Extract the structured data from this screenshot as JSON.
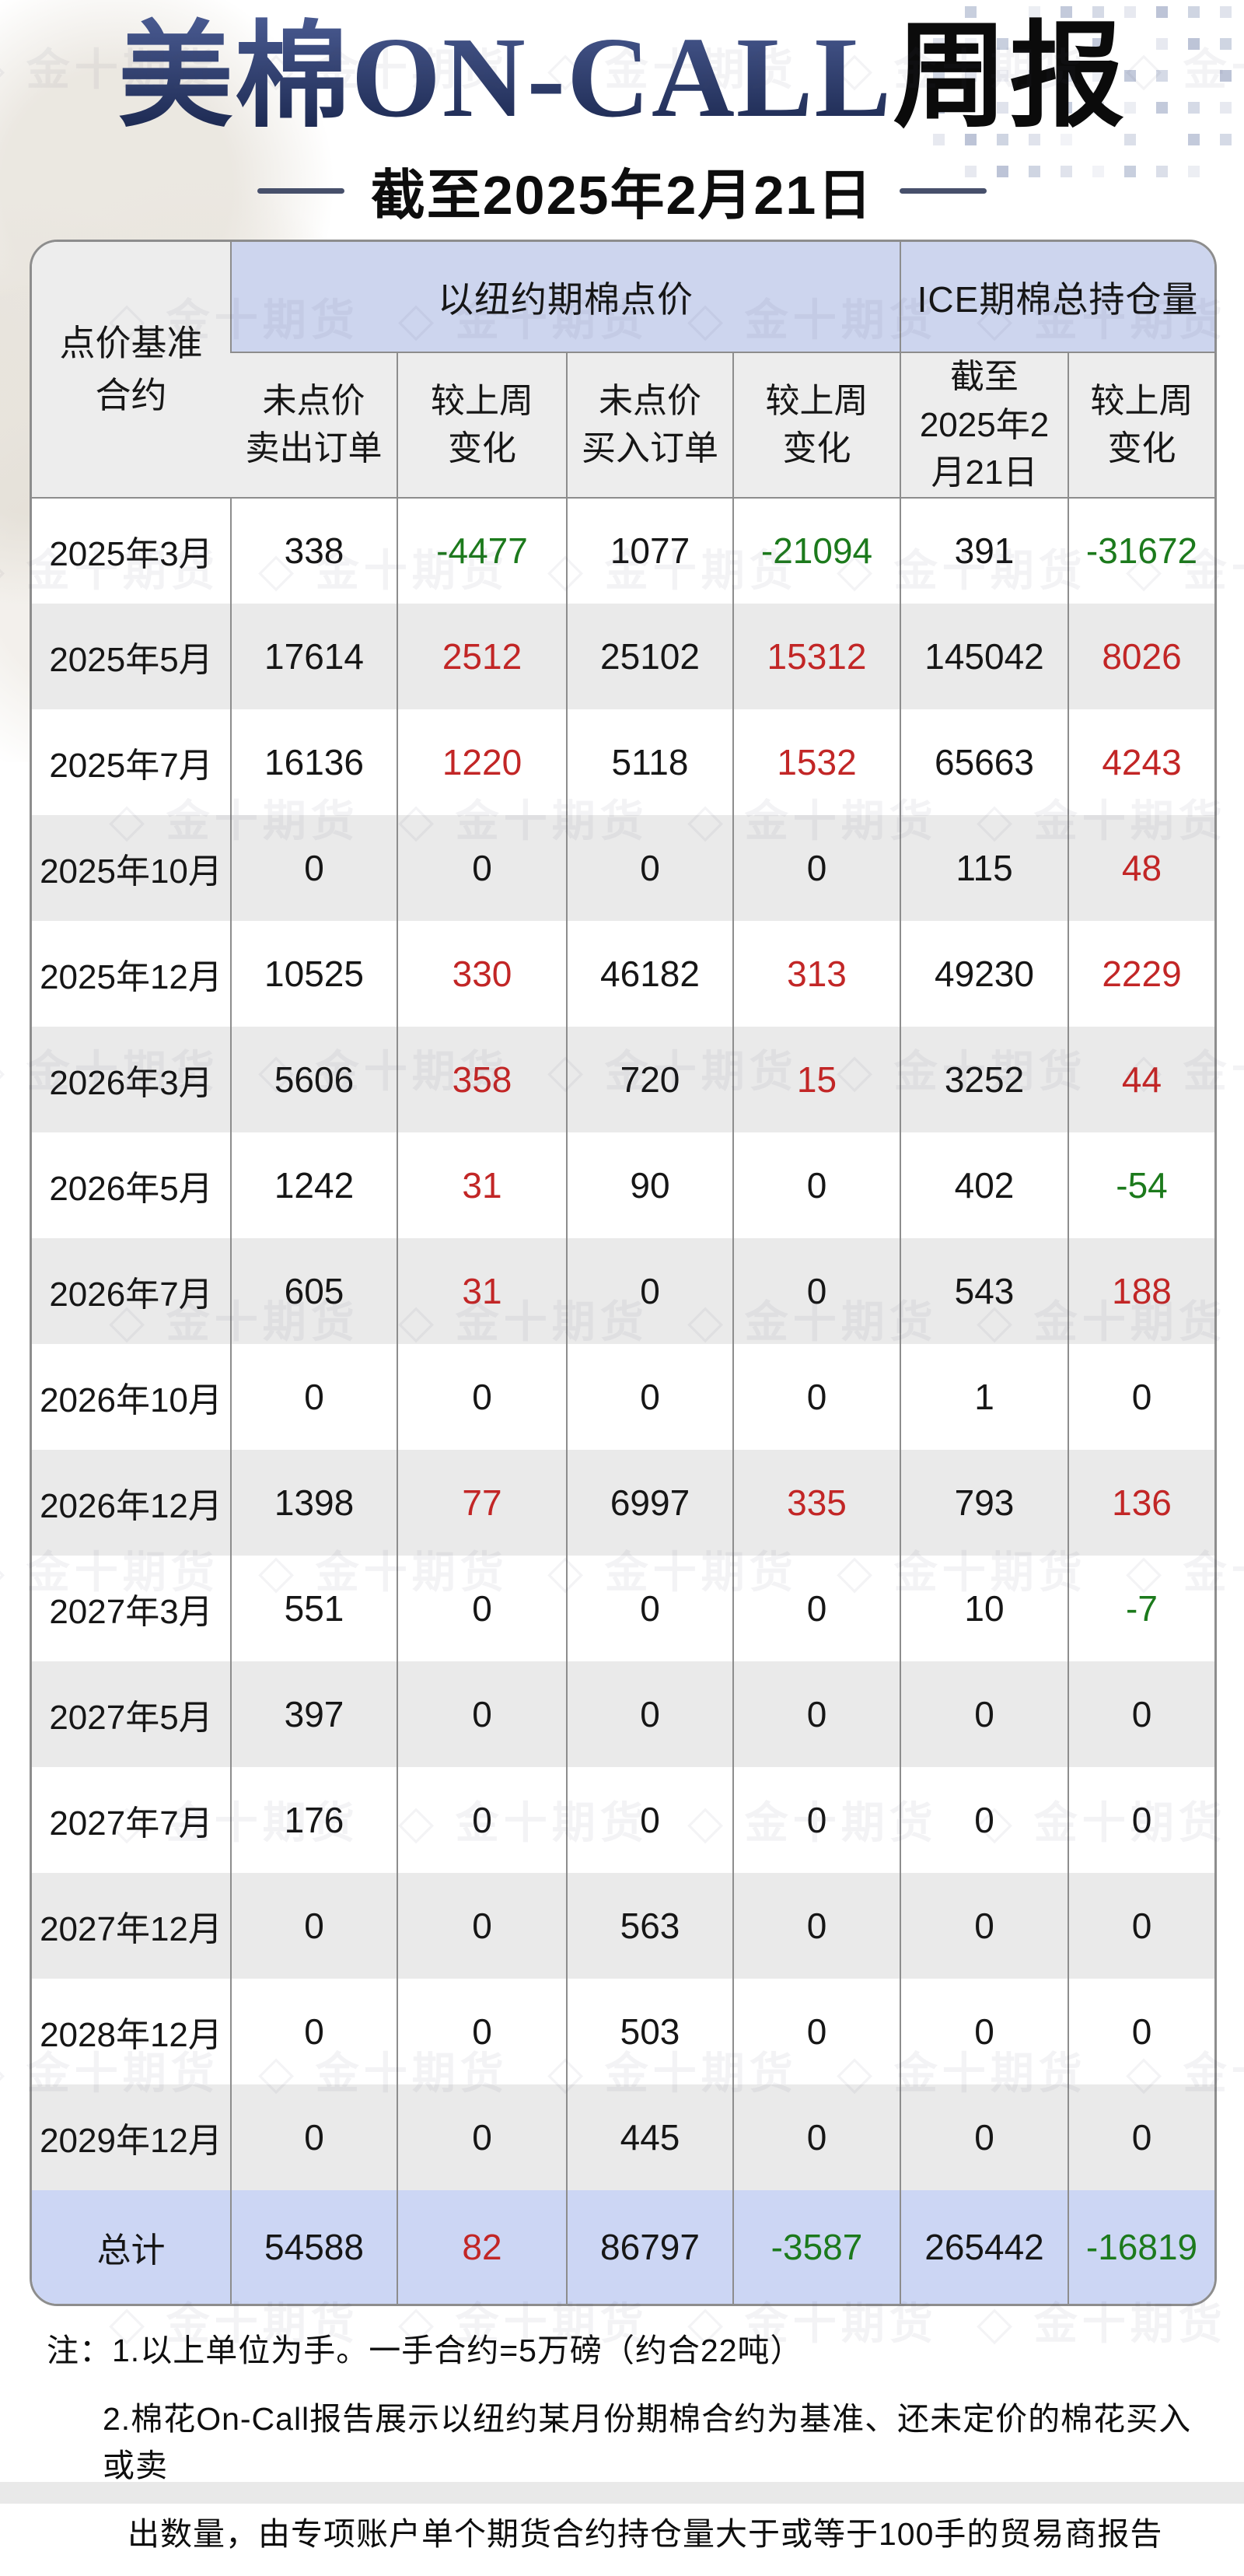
{
  "header": {
    "title_main": "美棉ON-CALL",
    "title_suffix": "周报",
    "subtitle": "截至2025年2月21日"
  },
  "watermark": {
    "text": "金十期货"
  },
  "table": {
    "corner_header_lines": [
      "点价基准",
      "合约"
    ],
    "group_headers": [
      "以纽约期棉点价",
      "ICE期棉总持仓量"
    ],
    "sub_headers": [
      [
        "未点价",
        "卖出订单"
      ],
      [
        "较上周",
        "变化"
      ],
      [
        "未点价",
        "买入订单"
      ],
      [
        "较上周",
        "变化"
      ],
      [
        "截至",
        "2025年2",
        "月21日"
      ],
      [
        "较上周",
        "变化"
      ]
    ],
    "change_value_indices": [
      1,
      3,
      5
    ]
  },
  "chart_data": {
    "type": "table",
    "title": "美棉ON-CALL周报（截至2025年2月21日）",
    "columns": [
      "点价基准合约",
      "未点价卖出订单",
      "较上周变化",
      "未点价买入订单",
      "较上周变化",
      "ICE期棉总持仓量截至2025年2月21日",
      "较上周变化"
    ],
    "rows": [
      {
        "contract": "2025年3月",
        "values": [
          338,
          -4477,
          1077,
          -21094,
          391,
          -31672
        ]
      },
      {
        "contract": "2025年5月",
        "values": [
          17614,
          2512,
          25102,
          15312,
          145042,
          8026
        ]
      },
      {
        "contract": "2025年7月",
        "values": [
          16136,
          1220,
          5118,
          1532,
          65663,
          4243
        ]
      },
      {
        "contract": "2025年10月",
        "values": [
          0,
          0,
          0,
          0,
          115,
          48
        ]
      },
      {
        "contract": "2025年12月",
        "values": [
          10525,
          330,
          46182,
          313,
          49230,
          2229
        ]
      },
      {
        "contract": "2026年3月",
        "values": [
          5606,
          358,
          720,
          15,
          3252,
          44
        ]
      },
      {
        "contract": "2026年5月",
        "values": [
          1242,
          31,
          90,
          0,
          402,
          -54
        ]
      },
      {
        "contract": "2026年7月",
        "values": [
          605,
          31,
          0,
          0,
          543,
          188
        ]
      },
      {
        "contract": "2026年10月",
        "values": [
          0,
          0,
          0,
          0,
          1,
          0
        ]
      },
      {
        "contract": "2026年12月",
        "values": [
          1398,
          77,
          6997,
          335,
          793,
          136
        ]
      },
      {
        "contract": "2027年3月",
        "values": [
          551,
          0,
          0,
          0,
          10,
          -7
        ]
      },
      {
        "contract": "2027年5月",
        "values": [
          397,
          0,
          0,
          0,
          0,
          0
        ]
      },
      {
        "contract": "2027年7月",
        "values": [
          176,
          0,
          0,
          0,
          0,
          0
        ]
      },
      {
        "contract": "2027年12月",
        "values": [
          0,
          0,
          563,
          0,
          0,
          0
        ]
      },
      {
        "contract": "2028年12月",
        "values": [
          0,
          0,
          503,
          0,
          0,
          0
        ]
      },
      {
        "contract": "2029年12月",
        "values": [
          0,
          0,
          445,
          0,
          0,
          0
        ]
      }
    ],
    "total": {
      "label": "总计",
      "values": [
        54588,
        82,
        86797,
        -3587,
        265442,
        -16819
      ]
    },
    "value_color_rule": "positive=red, negative=green, zero=black (applies to 较上周变化 columns)"
  },
  "notes": [
    "注：1.以上单位为手。一手合约=5万磅（约合22吨）",
    "2.棉花On-Call报告展示以纽约某月份期棉合约为基准、还未定价的棉花买入或卖",
    "出数量，由专项账户单个期货合约持仓量大于或等于100手的贸易商报告"
  ],
  "colors": {
    "positive_red": "#c22626",
    "negative_green": "#1c7a1c",
    "neutral_black": "#161616",
    "group_header_blue": "#cdd5ee",
    "subheader_gray": "#ededed",
    "row_alt_gray": "#eaeaea",
    "total_row_blue": "#ccd6f4",
    "table_border_gray": "#8d8d8d",
    "title_navy": "#2c3a68"
  }
}
